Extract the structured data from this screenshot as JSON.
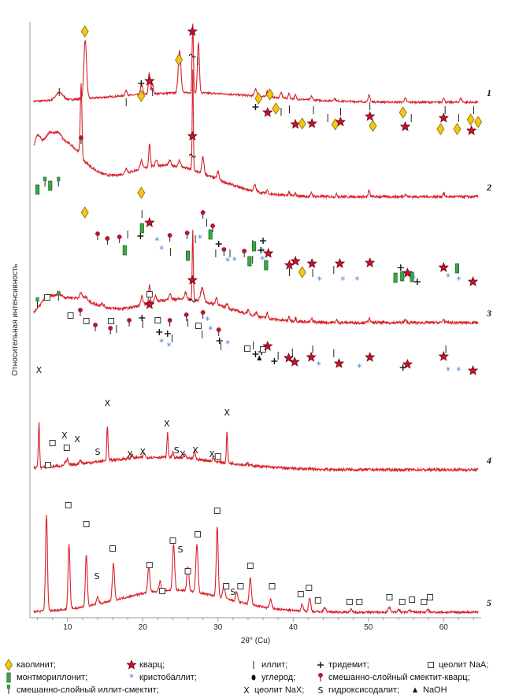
{
  "chart_data": {
    "type": "line",
    "xlabel": "2θ° (Cu)",
    "ylabel": "Относительная интенсивность",
    "xlim": [
      5,
      65
    ],
    "x_ticks": [
      10,
      20,
      30,
      40,
      50,
      60
    ],
    "grid": false,
    "series": [
      {
        "name": "1",
        "peaks": [
          {
            "x": 8.9,
            "h": 0.06,
            "w": 0.7
          },
          {
            "x": 12.35,
            "h": 0.47,
            "w": 0.25
          },
          {
            "x": 17.8,
            "h": 0.04,
            "w": 0.2
          },
          {
            "x": 19.85,
            "h": 0.08,
            "w": 0.2
          },
          {
            "x": 20.85,
            "h": 0.17,
            "w": 0.15
          },
          {
            "x": 21.3,
            "h": 0.09,
            "w": 0.15
          },
          {
            "x": 24.9,
            "h": 0.34,
            "w": 0.25
          },
          {
            "x": 26.65,
            "h": 0.58,
            "w": 0.12
          },
          {
            "x": 27.4,
            "h": 0.4,
            "w": 0.18
          },
          {
            "x": 35.0,
            "h": 0.06,
            "w": 0.2
          },
          {
            "x": 36.55,
            "h": 0.05,
            "w": 0.15
          },
          {
            "x": 38.4,
            "h": 0.04,
            "w": 0.2
          },
          {
            "x": 39.45,
            "h": 0.04,
            "w": 0.15
          },
          {
            "x": 40.3,
            "h": 0.03,
            "w": 0.15
          },
          {
            "x": 42.45,
            "h": 0.03,
            "w": 0.15
          },
          {
            "x": 45.5,
            "h": 0.02,
            "w": 0.2
          },
          {
            "x": 50.1,
            "h": 0.06,
            "w": 0.15
          },
          {
            "x": 54.9,
            "h": 0.03,
            "w": 0.2
          },
          {
            "x": 60.0,
            "h": 0.04,
            "w": 0.15
          },
          {
            "x": 62.3,
            "h": 0.03,
            "w": 0.2
          }
        ]
      },
      {
        "name": "2",
        "peaks": [
          {
            "x": 6.0,
            "h": 0.12,
            "w": 0.6
          },
          {
            "x": 7.6,
            "h": 0.08,
            "w": 0.8
          },
          {
            "x": 8.8,
            "h": 0.05,
            "w": 0.5
          },
          {
            "x": 11.8,
            "h": 0.56,
            "w": 0.15
          },
          {
            "x": 17.8,
            "h": 0.04,
            "w": 0.2
          },
          {
            "x": 19.8,
            "h": 0.07,
            "w": 0.2
          },
          {
            "x": 20.9,
            "h": 0.19,
            "w": 0.15
          },
          {
            "x": 21.8,
            "h": 0.05,
            "w": 0.2
          },
          {
            "x": 23.6,
            "h": 0.04,
            "w": 0.2
          },
          {
            "x": 24.9,
            "h": 0.05,
            "w": 0.2
          },
          {
            "x": 26.65,
            "h": 0.8,
            "w": 0.1
          },
          {
            "x": 28.0,
            "h": 0.13,
            "w": 0.2
          },
          {
            "x": 30.0,
            "h": 0.06,
            "w": 0.2
          },
          {
            "x": 34.9,
            "h": 0.05,
            "w": 0.2
          },
          {
            "x": 36.55,
            "h": 0.03,
            "w": 0.15
          },
          {
            "x": 39.45,
            "h": 0.03,
            "w": 0.15
          },
          {
            "x": 40.3,
            "h": 0.02,
            "w": 0.15
          },
          {
            "x": 42.45,
            "h": 0.03,
            "w": 0.15
          },
          {
            "x": 45.8,
            "h": 0.02,
            "w": 0.15
          },
          {
            "x": 50.1,
            "h": 0.05,
            "w": 0.15
          },
          {
            "x": 54.9,
            "h": 0.02,
            "w": 0.2
          },
          {
            "x": 60.0,
            "h": 0.03,
            "w": 0.15
          }
        ]
      },
      {
        "name": "3",
        "peaks": [
          {
            "x": 7.3,
            "h": 0.07,
            "w": 1.0
          },
          {
            "x": 8.8,
            "h": 0.04,
            "w": 0.6
          },
          {
            "x": 11.8,
            "h": 0.05,
            "w": 0.3
          },
          {
            "x": 12.5,
            "h": 0.03,
            "w": 0.3
          },
          {
            "x": 14.6,
            "h": 0.02,
            "w": 0.3
          },
          {
            "x": 19.9,
            "h": 0.07,
            "w": 0.2
          },
          {
            "x": 20.9,
            "h": 0.16,
            "w": 0.15
          },
          {
            "x": 21.7,
            "h": 0.05,
            "w": 0.2
          },
          {
            "x": 23.6,
            "h": 0.05,
            "w": 0.2
          },
          {
            "x": 25.7,
            "h": 0.06,
            "w": 0.2
          },
          {
            "x": 26.65,
            "h": 0.6,
            "w": 0.1
          },
          {
            "x": 27.9,
            "h": 0.11,
            "w": 0.3
          },
          {
            "x": 29.8,
            "h": 0.06,
            "w": 0.2
          },
          {
            "x": 31.2,
            "h": 0.04,
            "w": 0.2
          },
          {
            "x": 34.0,
            "h": 0.03,
            "w": 0.2
          },
          {
            "x": 35.1,
            "h": 0.03,
            "w": 0.2
          },
          {
            "x": 36.55,
            "h": 0.04,
            "w": 0.15
          },
          {
            "x": 39.45,
            "h": 0.03,
            "w": 0.15
          },
          {
            "x": 40.3,
            "h": 0.03,
            "w": 0.15
          },
          {
            "x": 42.45,
            "h": 0.03,
            "w": 0.15
          },
          {
            "x": 45.8,
            "h": 0.02,
            "w": 0.15
          },
          {
            "x": 50.1,
            "h": 0.04,
            "w": 0.15
          },
          {
            "x": 54.9,
            "h": 0.02,
            "w": 0.2
          },
          {
            "x": 60.0,
            "h": 0.03,
            "w": 0.15
          }
        ]
      },
      {
        "name": "4",
        "peaks": [
          {
            "x": 6.2,
            "h": 0.47,
            "w": 0.12
          },
          {
            "x": 9.7,
            "h": 0.03,
            "w": 0.2
          },
          {
            "x": 10.0,
            "h": 0.06,
            "w": 0.15
          },
          {
            "x": 11.7,
            "h": 0.04,
            "w": 0.2
          },
          {
            "x": 15.3,
            "h": 0.37,
            "w": 0.12
          },
          {
            "x": 18.6,
            "h": 0.04,
            "w": 0.15
          },
          {
            "x": 20.2,
            "h": 0.05,
            "w": 0.15
          },
          {
            "x": 23.3,
            "h": 0.26,
            "w": 0.12
          },
          {
            "x": 24.0,
            "h": 0.05,
            "w": 0.15
          },
          {
            "x": 25.6,
            "h": 0.05,
            "w": 0.15
          },
          {
            "x": 26.9,
            "h": 0.09,
            "w": 0.15
          },
          {
            "x": 29.4,
            "h": 0.04,
            "w": 0.15
          },
          {
            "x": 31.2,
            "h": 0.32,
            "w": 0.12
          },
          {
            "x": 33.9,
            "h": 0.02,
            "w": 0.15
          }
        ]
      },
      {
        "name": "5",
        "peaks": [
          {
            "x": 7.2,
            "h": 0.82,
            "w": 0.18
          },
          {
            "x": 10.2,
            "h": 0.55,
            "w": 0.18
          },
          {
            "x": 12.5,
            "h": 0.44,
            "w": 0.18
          },
          {
            "x": 14.0,
            "h": 0.06,
            "w": 0.2
          },
          {
            "x": 16.1,
            "h": 0.31,
            "w": 0.2
          },
          {
            "x": 20.8,
            "h": 0.21,
            "w": 0.2
          },
          {
            "x": 22.3,
            "h": 0.08,
            "w": 0.2
          },
          {
            "x": 24.1,
            "h": 0.39,
            "w": 0.2
          },
          {
            "x": 26.0,
            "h": 0.21,
            "w": 0.2
          },
          {
            "x": 27.2,
            "h": 0.41,
            "w": 0.2
          },
          {
            "x": 29.9,
            "h": 0.6,
            "w": 0.18
          },
          {
            "x": 30.8,
            "h": 0.12,
            "w": 0.2
          },
          {
            "x": 32.5,
            "h": 0.08,
            "w": 0.2
          },
          {
            "x": 34.3,
            "h": 0.23,
            "w": 0.2
          },
          {
            "x": 37.0,
            "h": 0.07,
            "w": 0.2
          },
          {
            "x": 41.2,
            "h": 0.06,
            "w": 0.2
          },
          {
            "x": 42.2,
            "h": 0.11,
            "w": 0.2
          },
          {
            "x": 44.2,
            "h": 0.04,
            "w": 0.2
          },
          {
            "x": 47.7,
            "h": 0.02,
            "w": 0.2
          },
          {
            "x": 52.8,
            "h": 0.04,
            "w": 0.25
          },
          {
            "x": 54.0,
            "h": 0.02,
            "w": 0.2
          },
          {
            "x": 55.5,
            "h": 0.02,
            "w": 0.2
          },
          {
            "x": 57.9,
            "h": 0.02,
            "w": 0.2
          }
        ]
      }
    ],
    "legend": [
      {
        "symbol": "kaolinite",
        "text": "каолинит;"
      },
      {
        "symbol": "quartz",
        "text": "кварц;"
      },
      {
        "symbol": "illite",
        "text": "иллит;"
      },
      {
        "symbol": "tridymite",
        "text": "тридемит;"
      },
      {
        "symbol": "zeoliteNaA",
        "text": "цеолит NaA;"
      },
      {
        "symbol": "montmorillonite",
        "text": "монтмориллонит;"
      },
      {
        "symbol": "cristobalite",
        "text": "кристобаллит;"
      },
      {
        "symbol": "carbon",
        "text": "углерод;"
      },
      {
        "symbol": "smectite-quartz",
        "text": "смешанно-слойный смектит-кварц;"
      },
      {
        "symbol": "illite-smectite",
        "text": "смешанно-слойный иллит-смектит;"
      },
      {
        "symbol": "zeoliteNaX",
        "text": "цеолит NaX;"
      },
      {
        "symbol": "hydroxysodalite",
        "text": "гидроксисодалит;"
      },
      {
        "symbol": "NaOH",
        "text": "NaOH"
      }
    ]
  }
}
